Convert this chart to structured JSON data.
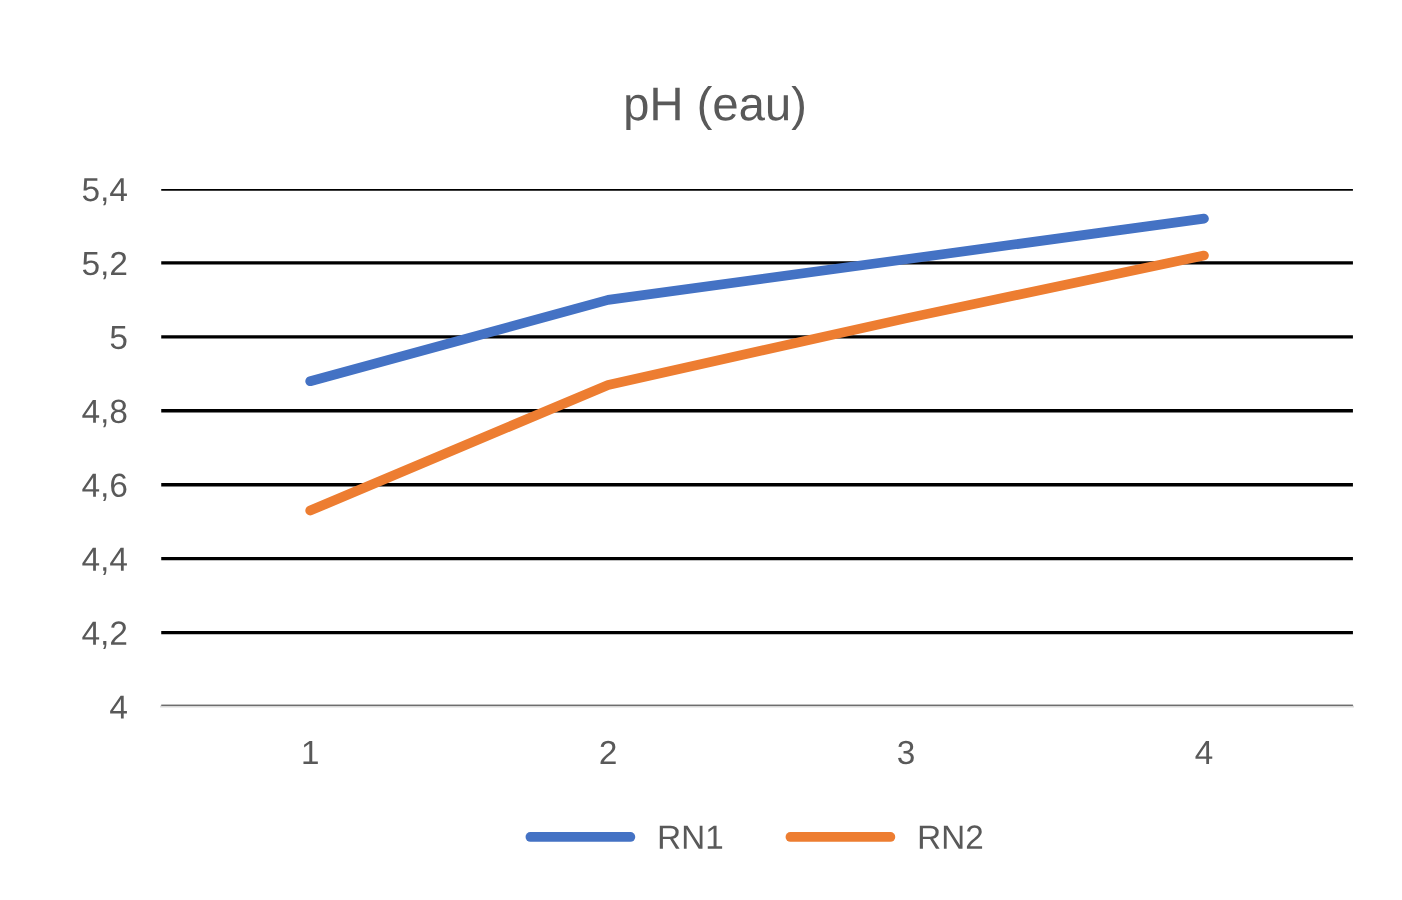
{
  "chart_data": {
    "type": "line",
    "title": "pH (eau)",
    "categories": [
      "1",
      "2",
      "3",
      "4"
    ],
    "series": [
      {
        "name": "RN1",
        "color": "#4472c4",
        "values": [
          4.88,
          5.1,
          5.21,
          5.32
        ]
      },
      {
        "name": "RN2",
        "color": "#ed7d31",
        "values": [
          4.53,
          4.87,
          5.05,
          5.22
        ]
      }
    ],
    "ylim": [
      4,
      5.4
    ],
    "yticks": [
      4,
      {
        "value": 4.2,
        "label": "4,2"
      },
      {
        "value": 4.4,
        "label": "4,4"
      },
      {
        "value": 4.6,
        "label": "4,6"
      },
      {
        "value": 4.8,
        "label": "4,8"
      },
      5,
      {
        "value": 5.2,
        "label": "5,2"
      },
      {
        "value": 5.4,
        "label": "5,4"
      }
    ],
    "grid": "y",
    "legend": "bottom",
    "marker": "none",
    "line_style": "solid"
  }
}
